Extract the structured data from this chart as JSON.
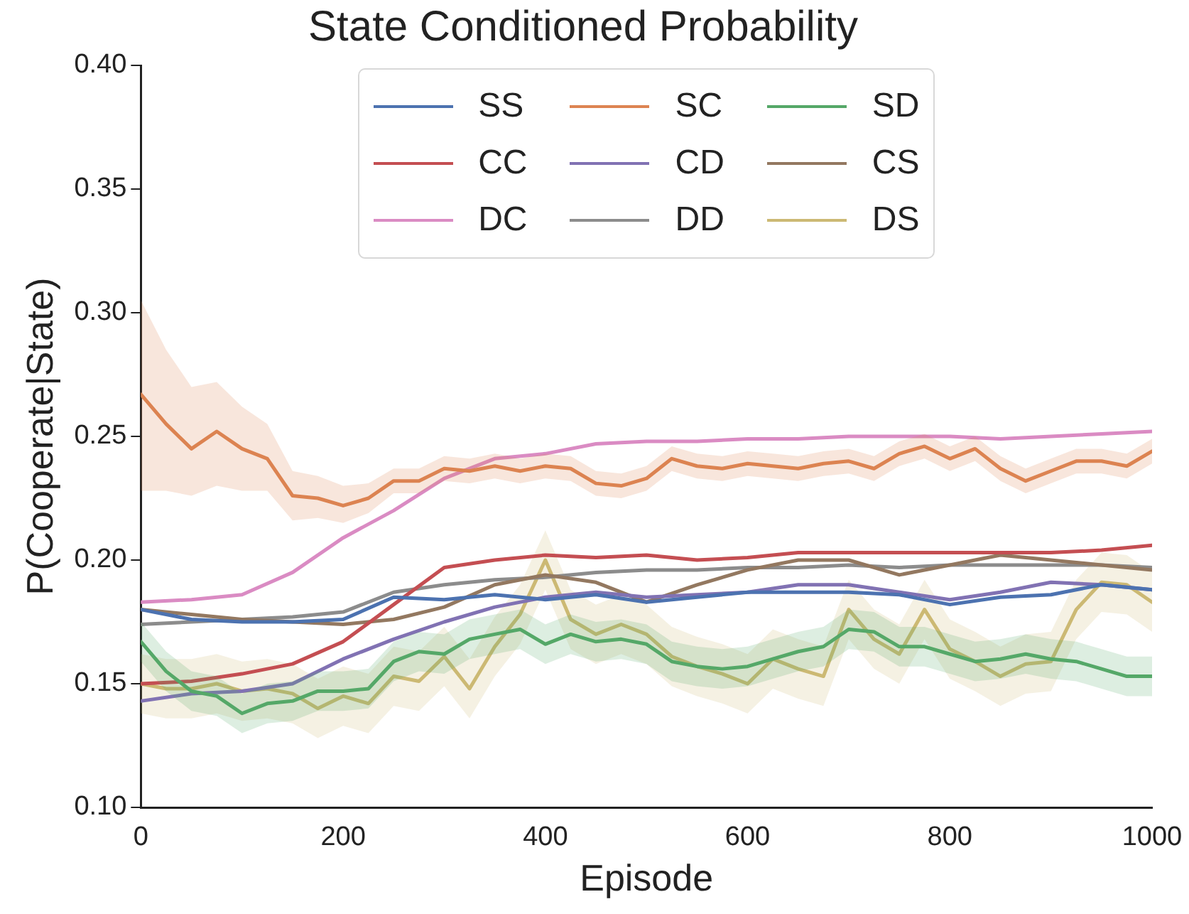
{
  "chart_data": {
    "type": "line",
    "title": "State Conditioned Probability",
    "xlabel": "Episode",
    "ylabel": "P(Cooperate|State)",
    "x": [
      0,
      50,
      100,
      150,
      200,
      250,
      300,
      350,
      400,
      450,
      500,
      550,
      600,
      650,
      700,
      750,
      800,
      850,
      900,
      950,
      1000
    ],
    "xlim": [
      0,
      1000
    ],
    "xticks": [
      0,
      200,
      400,
      600,
      800,
      1000
    ],
    "ylim": [
      0.1,
      0.4
    ],
    "yticks": [
      {
        "value": 0.1,
        "label": "0.10"
      },
      {
        "value": 0.15,
        "label": "0.15"
      },
      {
        "value": 0.2,
        "label": "0.20"
      },
      {
        "value": 0.25,
        "label": "0.25"
      },
      {
        "value": 0.3,
        "label": "0.30"
      },
      {
        "value": 0.35,
        "label": "0.35"
      },
      {
        "value": 0.4,
        "label": "0.40"
      }
    ],
    "grid": false,
    "legend": "top",
    "marker": "none",
    "line_style": "solid",
    "series": [
      {
        "name": "SS",
        "color": "#4c72b0",
        "values": [
          0.18,
          0.176,
          0.175,
          0.175,
          0.176,
          0.185,
          0.184,
          0.186,
          0.184,
          0.186,
          0.183,
          0.185,
          0.187,
          0.187,
          0.187,
          0.186,
          0.182,
          0.185,
          0.186,
          0.19,
          0.188
        ]
      },
      {
        "name": "SC",
        "color": "#dd8452",
        "x": [
          0,
          25,
          50,
          75,
          100,
          125,
          150,
          175,
          200,
          225,
          250,
          275,
          300,
          325,
          350,
          375,
          400,
          425,
          450,
          475,
          500,
          525,
          550,
          575,
          600,
          625,
          650,
          675,
          700,
          725,
          750,
          775,
          800,
          825,
          850,
          875,
          900,
          925,
          950,
          975,
          1000
        ],
        "values": [
          0.267,
          0.255,
          0.245,
          0.252,
          0.245,
          0.241,
          0.226,
          0.225,
          0.222,
          0.225,
          0.232,
          0.232,
          0.237,
          0.236,
          0.238,
          0.236,
          0.238,
          0.237,
          0.231,
          0.23,
          0.233,
          0.241,
          0.238,
          0.237,
          0.239,
          0.238,
          0.237,
          0.239,
          0.24,
          0.237,
          0.243,
          0.246,
          0.241,
          0.245,
          0.237,
          0.232,
          0.236,
          0.24,
          0.24,
          0.238,
          0.244
        ],
        "lower": [
          0.228,
          0.228,
          0.226,
          0.23,
          0.228,
          0.228,
          0.216,
          0.217,
          0.215,
          0.219,
          0.227,
          0.227,
          0.232,
          0.231,
          0.233,
          0.231,
          0.233,
          0.232,
          0.226,
          0.225,
          0.228,
          0.236,
          0.233,
          0.232,
          0.234,
          0.233,
          0.232,
          0.234,
          0.235,
          0.232,
          0.238,
          0.241,
          0.236,
          0.24,
          0.232,
          0.227,
          0.231,
          0.235,
          0.235,
          0.233,
          0.239
        ],
        "upper": [
          0.305,
          0.285,
          0.27,
          0.272,
          0.262,
          0.255,
          0.236,
          0.234,
          0.23,
          0.231,
          0.237,
          0.237,
          0.242,
          0.241,
          0.243,
          0.241,
          0.243,
          0.242,
          0.236,
          0.235,
          0.238,
          0.246,
          0.243,
          0.242,
          0.244,
          0.243,
          0.242,
          0.244,
          0.245,
          0.242,
          0.248,
          0.251,
          0.246,
          0.25,
          0.242,
          0.237,
          0.241,
          0.245,
          0.245,
          0.243,
          0.249
        ]
      },
      {
        "name": "SD",
        "color": "#55a868",
        "x": [
          0,
          25,
          50,
          75,
          100,
          125,
          150,
          175,
          200,
          225,
          250,
          275,
          300,
          325,
          350,
          375,
          400,
          425,
          450,
          475,
          500,
          525,
          550,
          575,
          600,
          625,
          650,
          675,
          700,
          725,
          750,
          775,
          800,
          825,
          850,
          875,
          900,
          925,
          950,
          975,
          1000
        ],
        "values": [
          0.167,
          0.155,
          0.147,
          0.145,
          0.138,
          0.142,
          0.143,
          0.147,
          0.147,
          0.148,
          0.159,
          0.163,
          0.162,
          0.168,
          0.17,
          0.172,
          0.166,
          0.17,
          0.167,
          0.168,
          0.166,
          0.159,
          0.157,
          0.156,
          0.157,
          0.16,
          0.163,
          0.165,
          0.172,
          0.171,
          0.165,
          0.165,
          0.162,
          0.159,
          0.16,
          0.162,
          0.16,
          0.159,
          0.156,
          0.153,
          0.153
        ],
        "lower": [
          0.159,
          0.147,
          0.139,
          0.137,
          0.13,
          0.134,
          0.135,
          0.139,
          0.139,
          0.14,
          0.151,
          0.155,
          0.154,
          0.16,
          0.162,
          0.164,
          0.158,
          0.162,
          0.159,
          0.16,
          0.158,
          0.151,
          0.149,
          0.148,
          0.149,
          0.152,
          0.155,
          0.157,
          0.164,
          0.163,
          0.157,
          0.157,
          0.154,
          0.151,
          0.152,
          0.154,
          0.152,
          0.151,
          0.148,
          0.145,
          0.145
        ],
        "upper": [
          0.175,
          0.163,
          0.155,
          0.153,
          0.146,
          0.15,
          0.151,
          0.155,
          0.155,
          0.156,
          0.167,
          0.171,
          0.17,
          0.176,
          0.178,
          0.18,
          0.174,
          0.178,
          0.175,
          0.176,
          0.174,
          0.167,
          0.165,
          0.164,
          0.165,
          0.168,
          0.171,
          0.173,
          0.18,
          0.179,
          0.173,
          0.173,
          0.17,
          0.167,
          0.168,
          0.17,
          0.168,
          0.167,
          0.164,
          0.161,
          0.161
        ]
      },
      {
        "name": "CC",
        "color": "#c44e52",
        "values": [
          0.15,
          0.151,
          0.154,
          0.158,
          0.167,
          0.182,
          0.197,
          0.2,
          0.202,
          0.201,
          0.202,
          0.2,
          0.201,
          0.203,
          0.203,
          0.203,
          0.203,
          0.203,
          0.203,
          0.204,
          0.206
        ]
      },
      {
        "name": "CD",
        "color": "#8172b3",
        "values": [
          0.143,
          0.146,
          0.147,
          0.15,
          0.16,
          0.168,
          0.175,
          0.181,
          0.185,
          0.187,
          0.185,
          0.186,
          0.187,
          0.19,
          0.19,
          0.187,
          0.184,
          0.187,
          0.191,
          0.19,
          0.188
        ]
      },
      {
        "name": "CS",
        "color": "#937860",
        "values": [
          0.18,
          0.178,
          0.176,
          0.175,
          0.174,
          0.176,
          0.181,
          0.19,
          0.194,
          0.191,
          0.183,
          0.19,
          0.196,
          0.2,
          0.2,
          0.194,
          0.198,
          0.202,
          0.2,
          0.198,
          0.196
        ]
      },
      {
        "name": "DC",
        "color": "#da8bc3",
        "values": [
          0.183,
          0.184,
          0.186,
          0.195,
          0.209,
          0.22,
          0.233,
          0.241,
          0.243,
          0.247,
          0.248,
          0.248,
          0.249,
          0.249,
          0.25,
          0.25,
          0.25,
          0.249,
          0.25,
          0.251,
          0.252
        ]
      },
      {
        "name": "DD",
        "color": "#8c8c8c",
        "values": [
          0.174,
          0.175,
          0.176,
          0.177,
          0.179,
          0.187,
          0.19,
          0.192,
          0.193,
          0.195,
          0.196,
          0.196,
          0.197,
          0.197,
          0.198,
          0.197,
          0.198,
          0.198,
          0.198,
          0.198,
          0.197
        ]
      },
      {
        "name": "DS",
        "color": "#ccb974",
        "x": [
          0,
          25,
          50,
          75,
          100,
          125,
          150,
          175,
          200,
          225,
          250,
          275,
          300,
          325,
          350,
          375,
          400,
          425,
          450,
          475,
          500,
          525,
          550,
          575,
          600,
          625,
          650,
          675,
          700,
          725,
          750,
          775,
          800,
          825,
          850,
          875,
          900,
          925,
          950,
          975,
          1000
        ],
        "values": [
          0.15,
          0.148,
          0.148,
          0.15,
          0.147,
          0.148,
          0.146,
          0.14,
          0.145,
          0.142,
          0.153,
          0.151,
          0.161,
          0.148,
          0.165,
          0.178,
          0.2,
          0.176,
          0.17,
          0.174,
          0.17,
          0.161,
          0.157,
          0.154,
          0.15,
          0.16,
          0.156,
          0.153,
          0.18,
          0.168,
          0.162,
          0.18,
          0.164,
          0.159,
          0.153,
          0.158,
          0.159,
          0.18,
          0.191,
          0.19,
          0.183
        ],
        "lower": [
          0.138,
          0.136,
          0.136,
          0.138,
          0.135,
          0.136,
          0.134,
          0.128,
          0.133,
          0.13,
          0.141,
          0.139,
          0.149,
          0.136,
          0.153,
          0.166,
          0.188,
          0.164,
          0.158,
          0.162,
          0.158,
          0.149,
          0.145,
          0.142,
          0.138,
          0.148,
          0.144,
          0.141,
          0.168,
          0.156,
          0.15,
          0.168,
          0.152,
          0.147,
          0.141,
          0.146,
          0.147,
          0.168,
          0.179,
          0.178,
          0.171
        ],
        "upper": [
          0.162,
          0.16,
          0.16,
          0.162,
          0.159,
          0.16,
          0.158,
          0.152,
          0.157,
          0.154,
          0.165,
          0.163,
          0.173,
          0.16,
          0.177,
          0.19,
          0.212,
          0.188,
          0.182,
          0.186,
          0.182,
          0.173,
          0.169,
          0.166,
          0.162,
          0.172,
          0.168,
          0.165,
          0.192,
          0.18,
          0.174,
          0.192,
          0.176,
          0.171,
          0.165,
          0.17,
          0.171,
          0.192,
          0.203,
          0.202,
          0.195
        ]
      }
    ]
  }
}
